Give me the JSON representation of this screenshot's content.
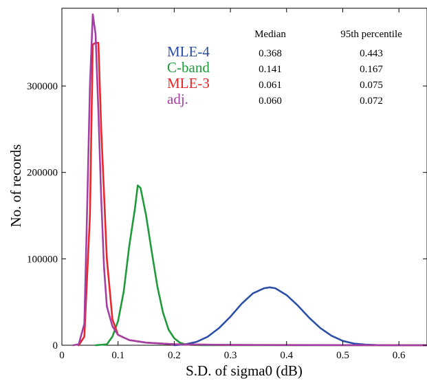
{
  "chart_data": {
    "type": "line",
    "xlabel": "S.D. of sigma0 (dB)",
    "ylabel": "No. of records",
    "xlim": [
      0,
      0.65
    ],
    "ylim": [
      0,
      390000
    ],
    "xticks": [
      0,
      0.1,
      0.2,
      0.3,
      0.4,
      0.5,
      0.6
    ],
    "xtick_labels": [
      "0",
      "0.1",
      "0.2",
      "0.3",
      "0.4",
      "0.5",
      "0.6"
    ],
    "yticks": [
      0,
      100000,
      200000,
      300000
    ],
    "ytick_labels": [
      "0",
      "100000",
      "200000",
      "300000"
    ],
    "grid": false,
    "series": [
      {
        "name": "MLE-4",
        "color": "#2b4fa8",
        "x": [
          0.2,
          0.22,
          0.24,
          0.26,
          0.28,
          0.3,
          0.32,
          0.34,
          0.36,
          0.37,
          0.38,
          0.4,
          0.42,
          0.44,
          0.46,
          0.48,
          0.5,
          0.52,
          0.54,
          0.56,
          0.58,
          0.6,
          0.62,
          0.65
        ],
        "y": [
          0,
          1000,
          4000,
          10000,
          20000,
          33000,
          48000,
          60000,
          66000,
          67000,
          66000,
          58000,
          46000,
          32000,
          20000,
          11000,
          5000,
          2000,
          700,
          200,
          80,
          30,
          10,
          0
        ]
      },
      {
        "name": "C-band",
        "color": "#1f9a3a",
        "x": [
          0.06,
          0.08,
          0.09,
          0.1,
          0.11,
          0.12,
          0.13,
          0.135,
          0.14,
          0.15,
          0.16,
          0.17,
          0.18,
          0.19,
          0.2,
          0.21,
          0.22,
          0.23,
          0.25,
          0.3,
          0.4,
          0.65
        ],
        "y": [
          0,
          1000,
          10000,
          28000,
          62000,
          115000,
          158000,
          185000,
          182000,
          150000,
          108000,
          68000,
          38000,
          18000,
          8000,
          3000,
          1000,
          300,
          100,
          0,
          0,
          0
        ]
      },
      {
        "name": "MLE-3",
        "color": "#e8262b",
        "x": [
          0.03,
          0.04,
          0.05,
          0.055,
          0.06,
          0.065,
          0.07,
          0.08,
          0.09,
          0.1,
          0.12,
          0.15,
          0.2,
          0.3,
          0.65
        ],
        "y": [
          0,
          10000,
          150000,
          348000,
          350000,
          350000,
          250000,
          100000,
          30000,
          12000,
          6000,
          3000,
          1000,
          300,
          0
        ]
      },
      {
        "name": "adj.",
        "color": "#a33fa3",
        "x": [
          0.02,
          0.03,
          0.04,
          0.045,
          0.05,
          0.055,
          0.06,
          0.065,
          0.07,
          0.075,
          0.08,
          0.09,
          0.1,
          0.12,
          0.15,
          0.2,
          0.3,
          0.65
        ],
        "y": [
          0,
          1000,
          25000,
          160000,
          300000,
          383000,
          360000,
          270000,
          170000,
          90000,
          45000,
          22000,
          12000,
          6000,
          3000,
          1000,
          300,
          0
        ]
      }
    ],
    "legend_table": {
      "headers": [
        "Median",
        "95th percentile"
      ],
      "rows": [
        {
          "label": "MLE-4",
          "color": "#2b4fa8",
          "median": "0.368",
          "p95": "0.443"
        },
        {
          "label": "C-band",
          "color": "#1f9a3a",
          "median": "0.141",
          "p95": "0.167"
        },
        {
          "label": "MLE-3",
          "color": "#e8262b",
          "median": "0.061",
          "p95": "0.075"
        },
        {
          "label": "adj.",
          "color": "#a33fa3",
          "median": "0.060",
          "p95": "0.072"
        }
      ]
    }
  }
}
